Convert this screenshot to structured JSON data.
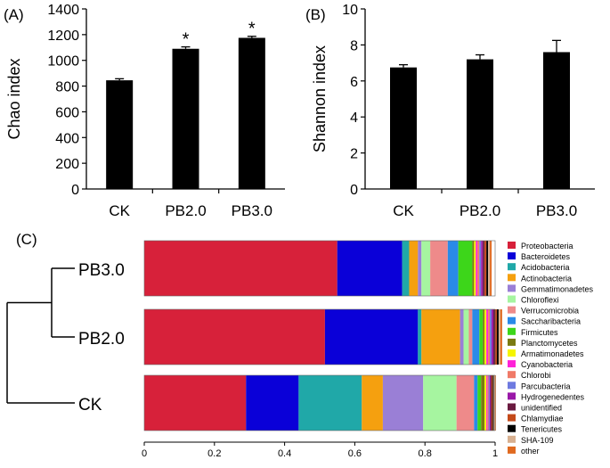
{
  "chart_data": [
    {
      "type": "bar",
      "panel_label": "(A)",
      "ylabel": "Chao index",
      "categories": [
        "CK",
        "PB2.0",
        "PB3.0"
      ],
      "values": [
        845,
        1090,
        1175
      ],
      "errors": [
        12,
        15,
        12
      ],
      "significance": [
        "",
        "*",
        "*"
      ],
      "ylim": [
        0,
        1400
      ],
      "yticks": [
        0,
        200,
        400,
        600,
        800,
        1000,
        1200,
        1400
      ],
      "bar_color": "#000000"
    },
    {
      "type": "bar",
      "panel_label": "(B)",
      "ylabel": "Shannon index",
      "categories": [
        "CK",
        "PB2.0",
        "PB3.0"
      ],
      "values": [
        6.75,
        7.2,
        7.6
      ],
      "errors": [
        0.15,
        0.25,
        0.65
      ],
      "significance": [
        "",
        "",
        ""
      ],
      "ylim": [
        0,
        10
      ],
      "yticks": [
        0,
        2,
        4,
        6,
        8,
        10
      ],
      "bar_color": "#000000"
    },
    {
      "type": "bar",
      "orientation": "horizontal-stacked",
      "panel_label": "(C)",
      "categories": [
        "PB3.0",
        "PB2.0",
        "CK"
      ],
      "xlim": [
        0,
        1
      ],
      "xticks": [
        "0",
        "0.2",
        "0.4",
        "0.6",
        "0.8",
        "1"
      ],
      "xtick_values": [
        0,
        0.2,
        0.4,
        0.6,
        0.8,
        1
      ],
      "dendrogram": "CK joins cluster (PB2.0, PB3.0)",
      "series": [
        {
          "name": "Proteobacteria",
          "color": "#d7213a",
          "values": [
            0.55,
            0.515,
            0.29
          ]
        },
        {
          "name": "Bacteroidetes",
          "color": "#0a00d8",
          "values": [
            0.185,
            0.265,
            0.15
          ]
        },
        {
          "name": "Acidobacteria",
          "color": "#20a8a8",
          "values": [
            0.02,
            0.01,
            0.18
          ]
        },
        {
          "name": "Actinobacteria",
          "color": "#f5a00f",
          "values": [
            0.025,
            0.11,
            0.06
          ]
        },
        {
          "name": "Gemmatimonadetes",
          "color": "#9a7fd6",
          "values": [
            0.01,
            0.01,
            0.115
          ]
        },
        {
          "name": "Chloroflexi",
          "color": "#a6f5a0",
          "values": [
            0.025,
            0.015,
            0.095
          ]
        },
        {
          "name": "Verrucomicrobia",
          "color": "#ee8a8a",
          "values": [
            0.05,
            0.01,
            0.05
          ]
        },
        {
          "name": "Saccharibacteria",
          "color": "#2a8ae8",
          "values": [
            0.03,
            0.02,
            0.01
          ]
        },
        {
          "name": "Firmicutes",
          "color": "#3dd61a",
          "values": [
            0.04,
            0.01,
            0.01
          ]
        },
        {
          "name": "Planctomycetes",
          "color": "#7a7a12",
          "values": [
            0.005,
            0.005,
            0.01
          ]
        },
        {
          "name": "Armatimonadetes",
          "color": "#f5f500",
          "values": [
            0.005,
            0.005,
            0.005
          ]
        },
        {
          "name": "Cyanobacteria",
          "color": "#ff22d8",
          "values": [
            0.005,
            0.005,
            0.003
          ]
        },
        {
          "name": "Chlorobi",
          "color": "#f07a68",
          "values": [
            0.005,
            0.005,
            0.003
          ]
        },
        {
          "name": "Parcubacteria",
          "color": "#6e7ae0",
          "values": [
            0.005,
            0.005,
            0.003
          ]
        },
        {
          "name": "Hydrogenedentes",
          "color": "#9a18a8",
          "values": [
            0.005,
            0.005,
            0.003
          ]
        },
        {
          "name": "unidentified",
          "color": "#6a1a40",
          "values": [
            0.005,
            0.005,
            0.003
          ]
        },
        {
          "name": "Chlamydiae",
          "color": "#c44a1a",
          "values": [
            0.005,
            0.005,
            0.003
          ]
        },
        {
          "name": "Tenericutes",
          "color": "#000000",
          "values": [
            0.005,
            0.005,
            0.003
          ]
        },
        {
          "name": "SHA-109",
          "color": "#d8b090",
          "values": [
            0.005,
            0.005,
            0.003
          ]
        },
        {
          "name": "other",
          "color": "#e06a20",
          "values": [
            0.005,
            0.005,
            0.003
          ]
        }
      ]
    }
  ]
}
